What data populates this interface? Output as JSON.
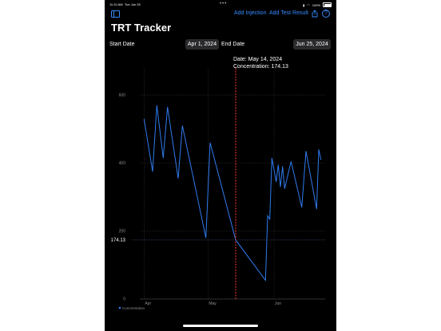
{
  "status_bar": {
    "time": "11:10 AM",
    "date": "Tue Jun 25",
    "battery": "100%"
  },
  "toolbar": {
    "add_injection": "Add Injection",
    "add_test_result": "Add Test Result"
  },
  "title": "TRT Tracker",
  "date_range": {
    "start_label": "Start Date",
    "start_value": "Apr 1, 2024",
    "end_label": "End Date",
    "end_value": "Jun 25, 2024"
  },
  "selection": {
    "date_line": "Date: May 14, 2024",
    "concentration_line": "Concentration: 174.13",
    "value": 174.13,
    "x_day": 43
  },
  "colors": {
    "accent": "#3a8bff",
    "line": "#2f7bf0",
    "selection_rule": "#ff3b30",
    "background": "#000000"
  },
  "chart_data": {
    "type": "line",
    "x_unit": "days since Apr 1, 2024",
    "x_ticks": [
      {
        "x": 0,
        "label": "Apr"
      },
      {
        "x": 30,
        "label": "May"
      },
      {
        "x": 61,
        "label": "Jun"
      }
    ],
    "y_ticks": [
      0,
      200,
      400,
      600
    ],
    "ylim": [
      0,
      680
    ],
    "xlim": [
      -2,
      85
    ],
    "selected_value_label": "174.13",
    "legend": [
      {
        "name": "Concentration",
        "color": "#2f7bf0"
      }
    ],
    "legend_position": "bottom-left",
    "series": [
      {
        "name": "Concentration",
        "points": [
          [
            0,
            530
          ],
          [
            4,
            375
          ],
          [
            6,
            570
          ],
          [
            9,
            415
          ],
          [
            11,
            565
          ],
          [
            16,
            355
          ],
          [
            18,
            510
          ],
          [
            29,
            180
          ],
          [
            31,
            460
          ],
          [
            43,
            174
          ],
          [
            57,
            55
          ],
          [
            58,
            245
          ],
          [
            59,
            235
          ],
          [
            60,
            415
          ],
          [
            62,
            345
          ],
          [
            63,
            395
          ],
          [
            64,
            330
          ],
          [
            65,
            390
          ],
          [
            66,
            325
          ],
          [
            69,
            405
          ],
          [
            74,
            270
          ],
          [
            76,
            435
          ],
          [
            81,
            265
          ],
          [
            82,
            440
          ],
          [
            83,
            410
          ]
        ]
      }
    ]
  }
}
